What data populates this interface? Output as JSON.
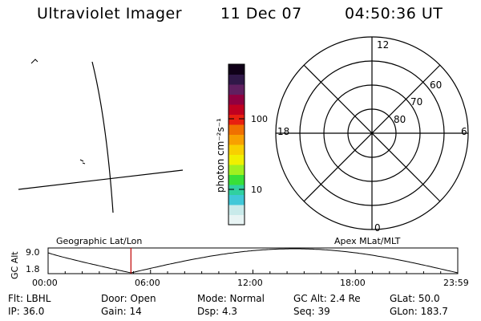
{
  "header": {
    "instrument": "Ultraviolet Imager",
    "date": "11 Dec 07",
    "time": "04:50:36 UT"
  },
  "colorbar": {
    "label": "photon cm⁻²s⁻¹",
    "ticks": [
      "100",
      "10"
    ],
    "colors": [
      "#e8f4f4",
      "#c8eaea",
      "#40c8d8",
      "#30d0a0",
      "#38e038",
      "#a0f020",
      "#f0f000",
      "#f8d000",
      "#f8a000",
      "#f07000",
      "#e82010",
      "#c00020",
      "#900040",
      "#602060",
      "#301848",
      "#100018"
    ]
  },
  "polar": {
    "mlt_labels": {
      "top": "12",
      "left": "18",
      "right": "6",
      "bottom": "0"
    },
    "lat_labels": [
      "60",
      "70",
      "80"
    ]
  },
  "timeline": {
    "ylabel": "GC Alt",
    "yticks": [
      "9.0",
      "1.8"
    ],
    "left_label": "Geographic Lat/Lon",
    "right_label": "Apex MLat/MLT",
    "xticks": [
      "00:00",
      "06:00",
      "12:00",
      "18:00",
      "23:59"
    ],
    "current_fraction": 0.2022
  },
  "status": {
    "row1": [
      {
        "key": "flt",
        "text": "Flt: LBHL"
      },
      {
        "key": "door",
        "text": "Door: Open"
      },
      {
        "key": "mode",
        "text": "Mode:  Normal"
      },
      {
        "key": "gcalt",
        "text": "GC Alt: 2.4 Re"
      },
      {
        "key": "glat",
        "text": "GLat:  50.0"
      }
    ],
    "row2": [
      {
        "key": "ip",
        "text": "IP: 36.0"
      },
      {
        "key": "gain",
        "text": "Gain: 14"
      },
      {
        "key": "dsp",
        "text": "Dsp:      4.3"
      },
      {
        "key": "seq",
        "text": "Seq: 39"
      },
      {
        "key": "glon",
        "text": "GLon: 183.7"
      }
    ]
  },
  "colors": {
    "marker": "#c00000",
    "line": "#000000"
  }
}
